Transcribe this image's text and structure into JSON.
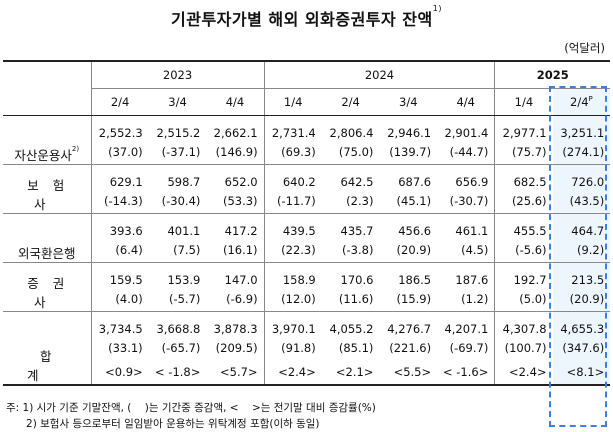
{
  "title": "기관투자가별 해외 외화증권투자 잔액",
  "title_sup": "1)",
  "unit": "(억달러)",
  "years": [
    "2023",
    "2024",
    "2025"
  ],
  "quarters": [
    "2/4",
    "3/4",
    "4/4",
    "1/4",
    "2/4",
    "3/4",
    "4/4",
    "1/4",
    "2/4"
  ],
  "last_quarter_sup": "P",
  "rows": [
    {
      "label": "자산운용사",
      "label_sup": "2)",
      "values": [
        "2,552.3",
        "2,515.2",
        "2,662.1",
        "2,731.4",
        "2,806.4",
        "2,946.1",
        "2,901.4",
        "2,977.1",
        "3,251.1"
      ],
      "changes": [
        "(37.0)",
        "(-37.1)",
        "(146.9)",
        "(69.3)",
        "(75.0)",
        "(139.7)",
        "(-44.7)",
        "(75.7)",
        "(274.1)"
      ]
    },
    {
      "label": "보험사",
      "label_sup": "",
      "values": [
        "629.1",
        "598.7",
        "652.0",
        "640.2",
        "642.5",
        "687.6",
        "656.9",
        "682.5",
        "726.0"
      ],
      "changes": [
        "(-14.3)",
        "(-30.4)",
        "(53.3)",
        "(-11.7)",
        "(2.3)",
        "(45.1)",
        "(-30.7)",
        "(25.6)",
        "(43.5)"
      ]
    },
    {
      "label": "외국환은행",
      "label_sup": "",
      "values": [
        "393.6",
        "401.1",
        "417.2",
        "439.5",
        "435.7",
        "456.6",
        "461.1",
        "455.5",
        "464.7"
      ],
      "changes": [
        "(6.4)",
        "(7.5)",
        "(16.1)",
        "(22.3)",
        "(-3.8)",
        "(20.9)",
        "(4.5)",
        "(-5.6)",
        "(9.2)"
      ]
    },
    {
      "label": "증권사",
      "label_sup": "",
      "values": [
        "159.5",
        "153.9",
        "147.0",
        "158.9",
        "170.6",
        "186.5",
        "187.6",
        "192.7",
        "213.5"
      ],
      "changes": [
        "(4.0)",
        "(-5.7)",
        "(-6.9)",
        "(12.0)",
        "(11.6)",
        "(15.9)",
        "(1.2)",
        "(5.0)",
        "(20.9)"
      ]
    }
  ],
  "total": {
    "label": "합계",
    "values": [
      "3,734.5",
      "3,668.8",
      "3,878.3",
      "3,970.1",
      "4,055.2",
      "4,276.7",
      "4,207.1",
      "4,307.8",
      "4,655.3"
    ],
    "changes": [
      "(33.1)",
      "(-65.7)",
      "(209.5)",
      "(91.8)",
      "(85.1)",
      "(221.6)",
      "(-69.7)",
      "(100.7)",
      "(347.6)"
    ],
    "rates": [
      "<0.9>",
      "< -1.8>",
      "<5.7>",
      "<2.4>",
      "<2.1>",
      "<5.5>",
      "< -1.6>",
      "<2.4>",
      "<8.1>"
    ]
  },
  "notes": [
    "주: 1) 시가 기준 기말잔액, (    )는 기간중 증감액, <    >는 전기말 대비 증감률(%)",
    "      2) 보험사 등으로부터 일임받아 운용하는 위탁계정 포함(이하 동일)"
  ],
  "accent_color": "#3b7fe0"
}
